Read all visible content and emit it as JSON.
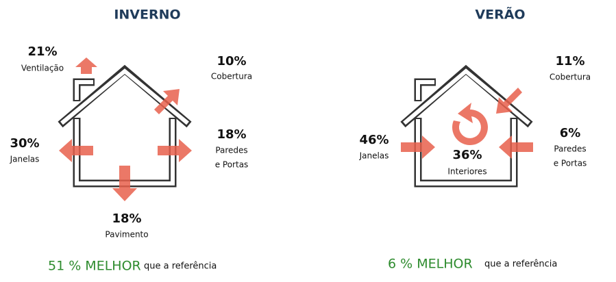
{
  "panels": [
    {
      "title": "INVERNO",
      "items": [
        {
          "value": "21%",
          "label": [
            "Ventilação"
          ]
        },
        {
          "value": "10%",
          "label": [
            "Cobertura"
          ]
        },
        {
          "value": "30%",
          "label": [
            "Janelas"
          ]
        },
        {
          "value": "18%",
          "label": [
            "Paredes",
            "e Portas"
          ]
        },
        {
          "value": "18%",
          "label": [
            "Pavimento"
          ]
        }
      ],
      "result": "51 % MELHOR",
      "note": "que a referência"
    },
    {
      "title": "VERÃO",
      "items": [
        {
          "value": "11%",
          "label": [
            "Cobertura"
          ]
        },
        {
          "value": "46%",
          "label": [
            "Janelas"
          ]
        },
        {
          "value": "36%",
          "label": [
            "Interiores"
          ]
        },
        {
          "value": "6%",
          "label": [
            "Paredes",
            "e Portas"
          ]
        }
      ],
      "result": "6 % MELHOR",
      "note": "que a referência"
    }
  ]
}
